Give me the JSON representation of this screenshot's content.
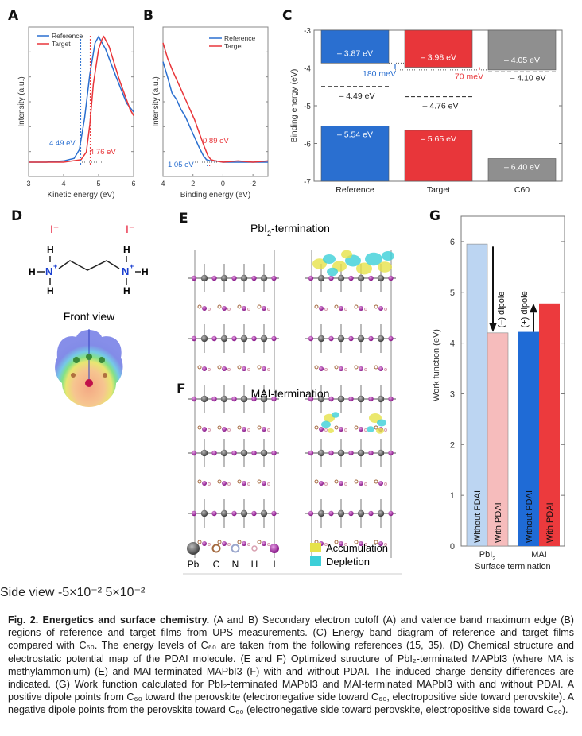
{
  "figure": {
    "panels": {
      "A": "A",
      "B": "B",
      "C": "C",
      "D": "D",
      "E": "E",
      "F": "F",
      "G": "G"
    },
    "colors": {
      "reference": "#2a6fd0",
      "target": "#e8363a",
      "c60": "#8f8f8f",
      "pbi2_without": "#bcd5f2",
      "pbi2_with": "#f6bcbc",
      "mai_without": "#1f6bd6",
      "mai_with": "#ec3a3d",
      "iodide": "#e8203a",
      "nitrogen": "#1a3fd0"
    }
  },
  "chart_data": [
    {
      "id": "A",
      "type": "line",
      "title": "",
      "xlabel": "Kinetic energy (eV)",
      "ylabel": "Intensity (a.u.)",
      "xlim": [
        3,
        6
      ],
      "xticks": [
        "3",
        "4",
        "5",
        "6"
      ],
      "legend": {
        "placement": "top-left",
        "entries": [
          "Reference",
          "Target"
        ]
      },
      "series": [
        {
          "name": "Reference",
          "x": [
            3.0,
            3.5,
            4.0,
            4.3,
            4.45,
            4.6,
            4.75,
            4.9,
            5.0,
            5.2,
            5.5,
            5.8,
            6.0
          ],
          "y": [
            0.0,
            0.0,
            0.01,
            0.03,
            0.1,
            0.35,
            0.7,
            0.95,
            1.0,
            0.9,
            0.68,
            0.47,
            0.4
          ]
        },
        {
          "name": "Target",
          "x": [
            3.0,
            3.5,
            4.0,
            4.5,
            4.65,
            4.75,
            4.85,
            5.0,
            5.1,
            5.15,
            5.3,
            5.6,
            5.9,
            6.0
          ],
          "y": [
            0.0,
            0.0,
            0.0,
            0.02,
            0.08,
            0.3,
            0.62,
            0.9,
            0.98,
            1.0,
            0.92,
            0.65,
            0.42,
            0.37
          ]
        }
      ],
      "annotations": [
        {
          "text": "4.49 eV",
          "series": "Reference",
          "x": 4.49
        },
        {
          "text": "4.76 eV",
          "series": "Target",
          "x": 4.76
        }
      ]
    },
    {
      "id": "B",
      "type": "line",
      "title": "",
      "xlabel": "Binding energy (eV)",
      "ylabel": "Intensity (a.u.)",
      "xlim": [
        4,
        -3
      ],
      "xticks": [
        "4",
        "2",
        "0",
        "-2"
      ],
      "legend": {
        "placement": "top-right",
        "entries": [
          "Reference",
          "Target"
        ]
      },
      "series": [
        {
          "name": "Reference",
          "x": [
            4.0,
            3.7,
            3.4,
            3.1,
            2.8,
            2.5,
            2.2,
            1.9,
            1.6,
            1.3,
            1.1,
            0.8,
            0.5,
            0,
            -1,
            -2,
            -3
          ],
          "y": [
            0.8,
            0.68,
            0.55,
            0.5,
            0.42,
            0.36,
            0.28,
            0.2,
            0.12,
            0.05,
            0.02,
            0.01,
            0.01,
            0.0,
            0.0,
            0.0,
            0.0
          ]
        },
        {
          "name": "Target",
          "x": [
            4.0,
            3.7,
            3.4,
            3.1,
            2.8,
            2.5,
            2.2,
            1.9,
            1.6,
            1.3,
            1.0,
            0.8,
            0.5,
            0,
            -1,
            -2,
            -3
          ],
          "y": [
            0.95,
            0.83,
            0.74,
            0.66,
            0.58,
            0.5,
            0.42,
            0.34,
            0.24,
            0.14,
            0.05,
            0.02,
            0.01,
            0.0,
            0.01,
            0.0,
            0.01
          ]
        }
      ],
      "annotations": [
        {
          "text": "1.05 eV",
          "series": "Reference",
          "x": 1.05
        },
        {
          "text": "0.89 eV",
          "series": "Target",
          "x": 0.89
        }
      ]
    },
    {
      "id": "C",
      "type": "bar",
      "title": "",
      "xlabel": "",
      "ylabel": "Binding energy (eV)",
      "ylim": [
        -7,
        -3
      ],
      "yticks": [
        "-3",
        "-4",
        "-5",
        "-6",
        "-7"
      ],
      "categories": [
        "Reference",
        "Target",
        "C60"
      ],
      "cbm": [
        -3.87,
        -3.98,
        -4.05
      ],
      "vbm": [
        -5.54,
        -5.65,
        -6.4
      ],
      "fermi": [
        -4.49,
        -4.76,
        -4.1
      ],
      "cbm_labels": [
        "– 3.87 eV",
        "– 3.98 eV",
        "– 4.05 eV"
      ],
      "vbm_labels": [
        "– 5.54 eV",
        "– 5.65 eV",
        "– 6.40 eV"
      ],
      "fermi_labels": [
        "– 4.49 eV",
        "– 4.76 eV",
        "– 4.10 eV"
      ],
      "offsets": [
        {
          "text": "180 meV",
          "between": [
            "Reference",
            "Target"
          ]
        },
        {
          "text": "70 meV",
          "between": [
            "Target",
            "C60"
          ]
        }
      ]
    },
    {
      "id": "G",
      "type": "bar",
      "title": "",
      "xlabel": "Surface termination",
      "ylabel": "Work function (eV)",
      "ylim": [
        0,
        6.5
      ],
      "yticks": [
        "0",
        "1",
        "2",
        "3",
        "4",
        "5",
        "6"
      ],
      "categories": [
        "PbI2",
        "MAI"
      ],
      "category_labels": [
        "PbI",
        "MAI"
      ],
      "series": [
        {
          "name": "Without PDAI",
          "group": "PbI2",
          "value": 5.95
        },
        {
          "name": "With PDAI",
          "group": "PbI2",
          "value": 4.2
        },
        {
          "name": "Without PDAI",
          "group": "MAI",
          "value": 4.22
        },
        {
          "name": "With PDAI",
          "group": "MAI",
          "value": 4.78
        }
      ],
      "annotations": [
        {
          "text": "(–) dipole",
          "group": "PbI2"
        },
        {
          "text": "(+) dipole",
          "group": "MAI"
        }
      ]
    }
  ],
  "panel_D": {
    "iodide_label": "I⁻",
    "atoms": {
      "H": "H",
      "N": "N",
      "plus": "+"
    },
    "front_view": "Front view",
    "side_view": "Side view",
    "scale_min": "-5×10⁻²",
    "scale_max": "5×10⁻²"
  },
  "panel_E": {
    "title_main": "PbI",
    "title_sub": "2",
    "title_rest": "-termination"
  },
  "panel_F": {
    "title": "MAI-termination"
  },
  "legend_atoms": [
    "Pb",
    "C",
    "N",
    "H",
    "I"
  ],
  "legend_density": [
    "Accumulation",
    "Depletion"
  ],
  "caption": {
    "lead": "Fig. 2. Energetics and surface chemistry.",
    "body": " (A and B) Secondary electron cutoff (A) and valence band maximum edge (B) regions of reference and target films from UPS measurements. (C) Energy band diagram of reference and target films compared with C₆₀. The energy levels of C₆₀ are taken from the following references (15, 35). (D) Chemical structure and electrostatic potential map of the PDAI molecule. (E and F) Optimized structure of PbI₂-terminated MAPbI3 (where MA is methylammonium) (E) and MAI-terminated MAPbI3 (F) with and without PDAI. The induced charge density differences are indicated. (G) Work function calculated for PbI₂-terminated MAPbI3 and MAI-terminated MAPbI3 with and without PDAI. A positive dipole points from C₆₀ toward the perovskite (electronegative side toward C₆₀, electropositive side toward perovskite). A negative dipole points from the perovskite toward C₆₀ (electronegative side toward perovskite, electropositive side toward C₆₀)."
  }
}
